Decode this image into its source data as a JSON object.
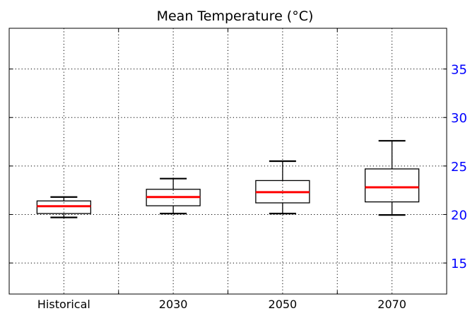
{
  "chart_data": {
    "type": "boxplot",
    "title": "Mean Temperature (°C)",
    "xlabel": "",
    "ylabel": "",
    "categories": [
      "Historical",
      "2030",
      "2050",
      "2070"
    ],
    "boxes": [
      {
        "category": "Historical",
        "whisker_low": 19.7,
        "q1": 20.1,
        "median": 20.85,
        "q3": 21.4,
        "whisker_high": 21.8
      },
      {
        "category": "2030",
        "whisker_low": 20.1,
        "q1": 20.9,
        "median": 21.8,
        "q3": 22.6,
        "whisker_high": 23.7
      },
      {
        "category": "2050",
        "whisker_low": 20.1,
        "q1": 21.2,
        "median": 22.3,
        "q3": 23.5,
        "whisker_high": 25.5
      },
      {
        "category": "2070",
        "whisker_low": 19.95,
        "q1": 21.3,
        "median": 22.8,
        "q3": 24.7,
        "whisker_high": 27.6
      }
    ],
    "ylim": [
      11.8,
      39.2
    ],
    "yticks": [
      15,
      20,
      25,
      30,
      35
    ],
    "ytick_labels": [
      "15",
      "20",
      "25",
      "30",
      "35"
    ],
    "y_axis_side": "right",
    "grid": true,
    "grid_style": "dotted",
    "colors": {
      "median": "#ff0000",
      "box": "#000000",
      "ytick_label": "#0000ff",
      "xtick_label": "#000000"
    }
  }
}
